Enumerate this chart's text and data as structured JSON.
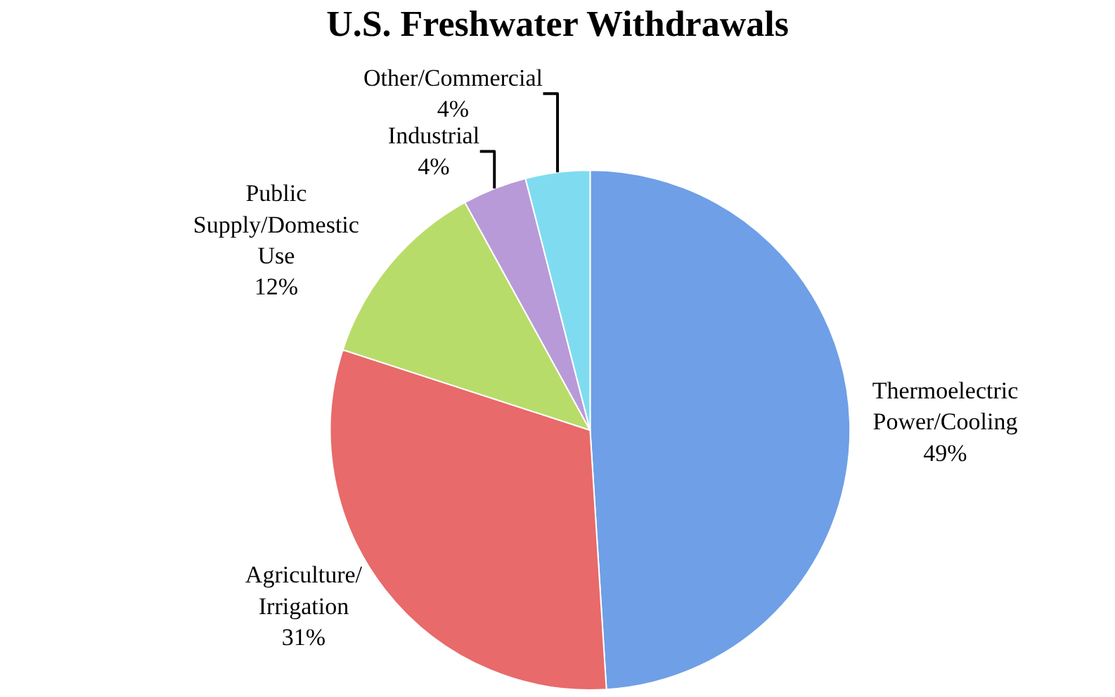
{
  "chart_data": {
    "type": "pie",
    "title": "U.S. Freshwater Withdrawals",
    "categories": [
      "Thermoelectric\nPower/Cooling",
      "Agriculture/\nIrrigation",
      "Public\nSupply/Domestic\nUse",
      "Industrial",
      "Other/Commercial"
    ],
    "values": [
      49,
      31,
      12,
      4,
      4
    ],
    "value_labels": [
      "49%",
      "31%",
      "12%",
      "4%",
      "4%"
    ],
    "colors": [
      "#6f9fe6",
      "#e86a6a",
      "#b8dc6a",
      "#b89ad8",
      "#7fdcf0"
    ],
    "legend": false
  }
}
